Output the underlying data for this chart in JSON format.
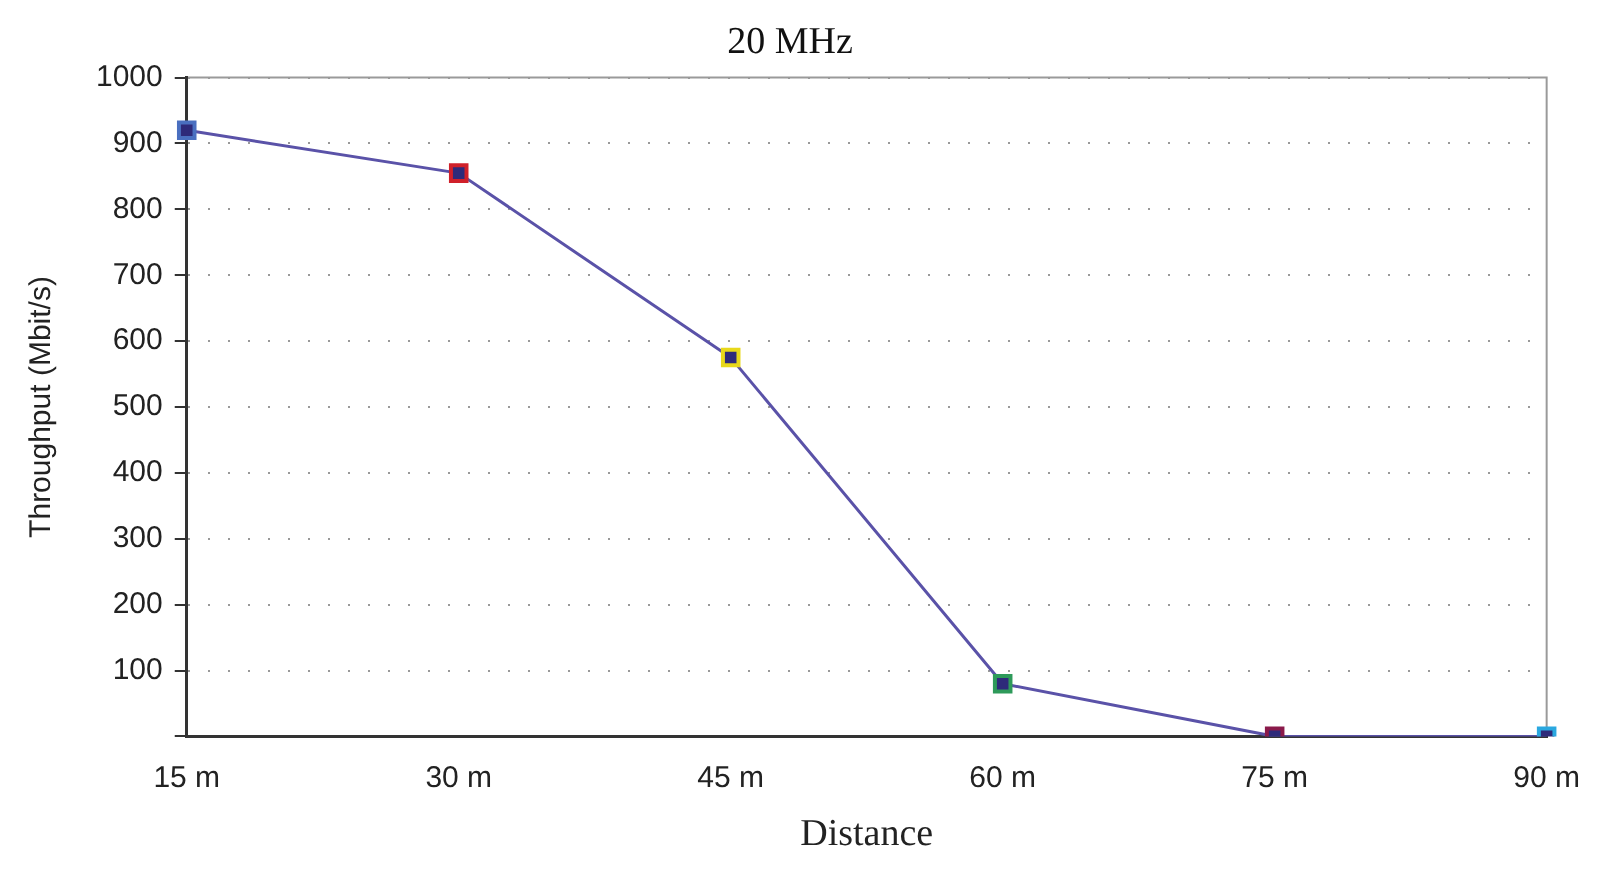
{
  "chart_data": {
    "type": "line",
    "title": "20 MHz",
    "xlabel": "Distance",
    "ylabel": "Throughput (Mbit/s)",
    "categories": [
      "15 m",
      "30 m",
      "45 m",
      "60 m",
      "75 m",
      "90 m"
    ],
    "series": [
      {
        "color": "#5a52a8",
        "values": [
          920,
          855,
          575,
          80,
          0,
          0
        ],
        "colors": [
          "#4a6fc0",
          "#d0202a",
          "#e8d81a",
          "#2e9a5a",
          "#8a1a4a",
          "#2aa8e0"
        ]
      }
    ],
    "ylim": [
      0,
      1000
    ],
    "yticks": [
      {
        "value": 0,
        "label": null
      },
      100,
      200,
      300,
      400,
      500,
      600,
      700,
      800,
      900,
      1000
    ],
    "grid": "y",
    "marker": "square",
    "line_style": "solid",
    "legend": false
  }
}
